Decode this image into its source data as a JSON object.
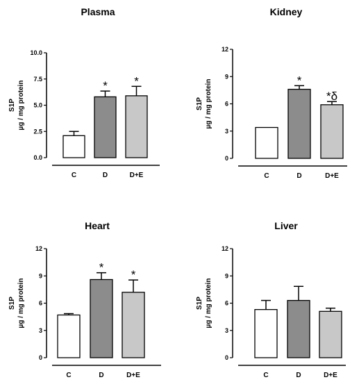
{
  "chart_data": [
    {
      "type": "bar",
      "title": "Plasma",
      "ylabel": [
        "S1P",
        "µg / mg protein"
      ],
      "categories": [
        "C",
        "D",
        "D+E"
      ],
      "values": [
        2.1,
        5.8,
        5.9
      ],
      "errors": [
        0.4,
        0.55,
        0.9
      ],
      "annotations": [
        "",
        "*",
        "*"
      ],
      "ylim": [
        0,
        10
      ],
      "yticks": [
        "0.0",
        "2.5",
        "5.0",
        "7.5",
        "10.0"
      ],
      "fill_colors": [
        "#ffffff",
        "#8c8c8c",
        "#c8c8c8"
      ]
    },
    {
      "type": "bar",
      "title": "Kidney",
      "ylabel": [
        "S1P",
        "µg / mg protein"
      ],
      "categories": [
        "C",
        "D",
        "D+E"
      ],
      "values": [
        3.4,
        7.6,
        5.9
      ],
      "errors": [
        0.0,
        0.4,
        0.35
      ],
      "annotations": [
        "",
        "*",
        "*δ"
      ],
      "ylim": [
        0,
        12
      ],
      "yticks": [
        "0",
        "3",
        "6",
        "9",
        "12"
      ],
      "fill_colors": [
        "#ffffff",
        "#8c8c8c",
        "#c8c8c8"
      ]
    },
    {
      "type": "bar",
      "title": "Heart",
      "ylabel": [
        "S1P",
        "µg / mg protein"
      ],
      "categories": [
        "C",
        "D",
        "D+E"
      ],
      "values": [
        4.7,
        8.6,
        7.2
      ],
      "errors": [
        0.15,
        0.75,
        1.35
      ],
      "annotations": [
        "",
        "*",
        "*"
      ],
      "ylim": [
        0,
        12
      ],
      "yticks": [
        "0",
        "3",
        "6",
        "9",
        "12"
      ],
      "fill_colors": [
        "#ffffff",
        "#8c8c8c",
        "#c8c8c8"
      ]
    },
    {
      "type": "bar",
      "title": "Liver",
      "ylabel": [
        "S1P",
        "µg / mg protein"
      ],
      "categories": [
        "C",
        "D",
        "D+E"
      ],
      "values": [
        5.3,
        6.3,
        5.1
      ],
      "errors": [
        1.0,
        1.55,
        0.35
      ],
      "annotations": [
        "",
        "",
        ""
      ],
      "ylim": [
        0,
        12
      ],
      "yticks": [
        "0",
        "3",
        "6",
        "9",
        "12"
      ],
      "fill_colors": [
        "#ffffff",
        "#8c8c8c",
        "#c8c8c8"
      ]
    }
  ]
}
